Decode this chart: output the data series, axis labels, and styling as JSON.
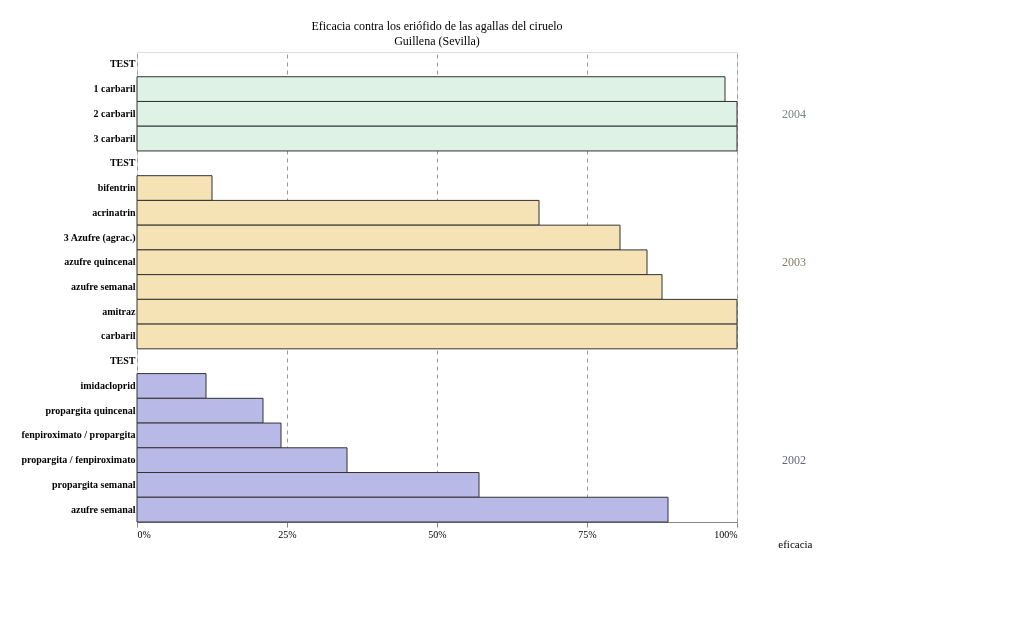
{
  "chart_data": {
    "type": "bar",
    "orientation": "horizontal",
    "title": "Eficacia contra los eriófido de las agallas del ciruelo",
    "subtitle": "Guillena (Sevilla)",
    "xlabel": "eficacia",
    "categories": [
      "TEST",
      "1 carbaril",
      "2 carbaril",
      "3 carbaril",
      "TEST",
      "bifentrin",
      "acrinatrin",
      "3 Azufre (agrac.)",
      "azufre quincenal",
      "azufre semanal",
      "amitraz",
      "carbaril",
      "TEST",
      "imidacloprid",
      "propargita quincenal",
      "fenpiroximato / propargita",
      "propargita / fenpiroximato",
      "propargita semanal",
      "azufre semanal"
    ],
    "series": [
      {
        "name": "2004",
        "color": "#dff2e6",
        "values": [
          null,
          98,
          100,
          100,
          null,
          null,
          null,
          null,
          null,
          null,
          null,
          null,
          null,
          null,
          null,
          null,
          null,
          null,
          null
        ]
      },
      {
        "name": "2003",
        "color": "#f5e2b5",
        "values": [
          null,
          null,
          null,
          null,
          null,
          12.5,
          67,
          80.5,
          85,
          87.5,
          100,
          100,
          null,
          null,
          null,
          null,
          null,
          null,
          null
        ]
      },
      {
        "name": "2002",
        "color": "#b9b9e8",
        "values": [
          null,
          null,
          null,
          null,
          null,
          null,
          null,
          null,
          null,
          null,
          null,
          null,
          null,
          11.5,
          21,
          24,
          35,
          57,
          88.5
        ]
      }
    ],
    "xlim": [
      0,
      100
    ],
    "xticks": [
      {
        "value": 0,
        "label": "0%"
      },
      {
        "value": 25,
        "label": "25%"
      },
      {
        "value": 50,
        "label": "50%"
      },
      {
        "value": 75,
        "label": "75%"
      },
      {
        "value": 100,
        "label": "100%"
      }
    ],
    "grid": "x",
    "legend": false
  }
}
